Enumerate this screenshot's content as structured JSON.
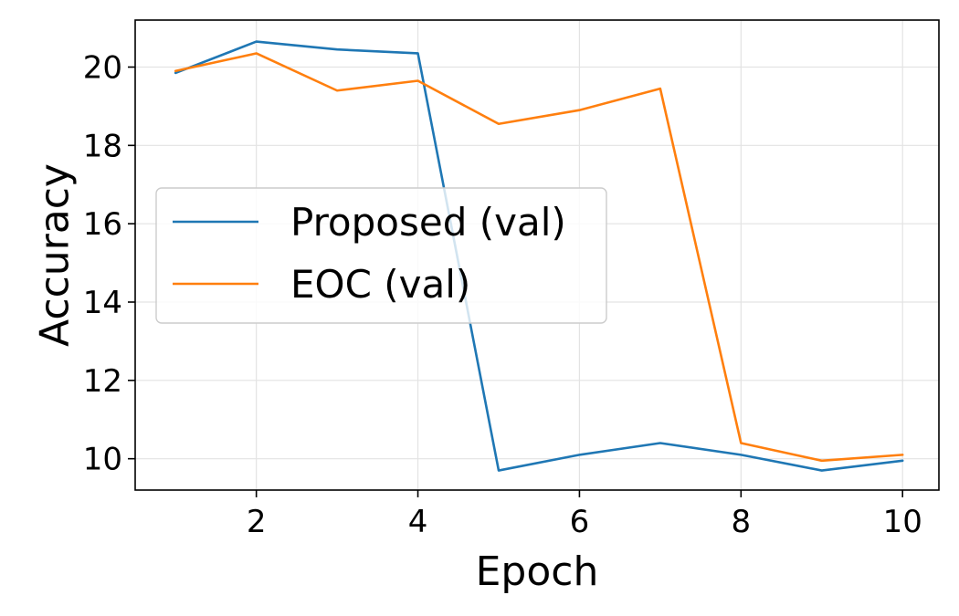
{
  "chart_data": {
    "type": "line",
    "xlabel": "Epoch",
    "ylabel": "Accuracy",
    "xlim": [
      0.5,
      10.45
    ],
    "ylim": [
      9.2,
      21.2
    ],
    "xticks": [
      2,
      4,
      6,
      8,
      10
    ],
    "yticks": [
      10,
      12,
      14,
      16,
      18,
      20
    ],
    "grid": true,
    "legend_position": "center-left",
    "x": [
      1,
      2,
      3,
      4,
      5,
      6,
      7,
      8,
      9,
      10
    ],
    "series": [
      {
        "name": "Proposed (val)",
        "color": "#1f77b4",
        "values": [
          19.85,
          20.65,
          20.45,
          20.35,
          9.7,
          10.1,
          10.4,
          10.1,
          9.7,
          9.95
        ]
      },
      {
        "name": "EOC (val)",
        "color": "#ff7f0e",
        "values": [
          19.9,
          20.35,
          19.4,
          19.65,
          18.55,
          18.9,
          19.45,
          10.4,
          9.95,
          10.1
        ]
      }
    ]
  }
}
